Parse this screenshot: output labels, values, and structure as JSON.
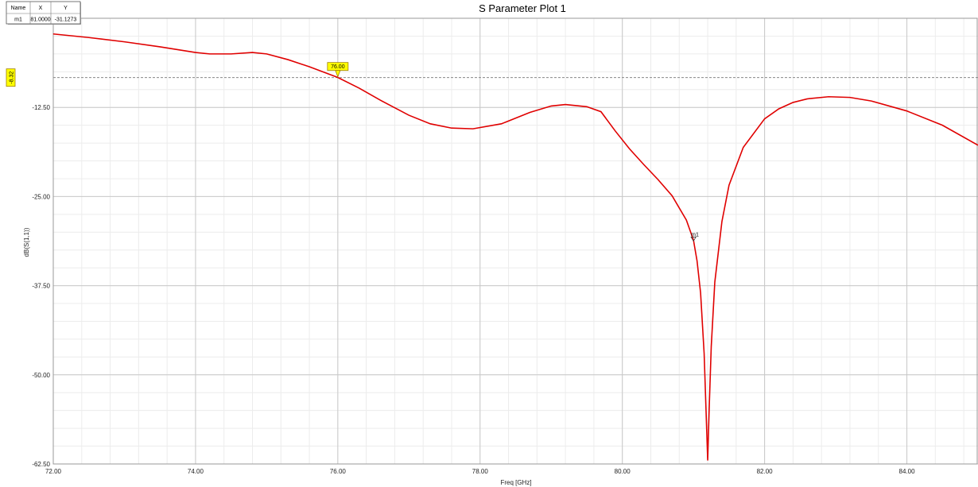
{
  "chart_data": {
    "type": "line",
    "title": "S Parameter Plot 1",
    "xlabel": "Freq [GHz]",
    "ylabel": "dB(S(1,1))",
    "xlim": [
      72.0,
      85.0
    ],
    "ylim": [
      -62.5,
      0
    ],
    "x_ticks": [
      72.0,
      74.0,
      76.0,
      78.0,
      80.0,
      82.0,
      84.0
    ],
    "x_tick_labels": [
      "72.00",
      "74.00",
      "76.00",
      "78.00",
      "80.00",
      "82.00",
      "84.00"
    ],
    "y_ticks": [
      -12.5,
      -25.0,
      -37.5,
      -50.0,
      -62.5
    ],
    "y_tick_labels": [
      "-12.50",
      "-25.00",
      "-37.50",
      "-50.00",
      "-62.50"
    ],
    "grid": true,
    "series_color": "#e00000",
    "series": [
      {
        "x": [
          72.0,
          72.5,
          73.0,
          73.5,
          74.0,
          74.2,
          74.5,
          74.8,
          75.0,
          75.3,
          75.6,
          76.0,
          76.3,
          76.6,
          77.0,
          77.3,
          77.6,
          77.9,
          78.3,
          78.7,
          79.0,
          79.2,
          79.5,
          79.7,
          79.9,
          80.1,
          80.3,
          80.5,
          80.7,
          80.9,
          81.0,
          81.05,
          81.1,
          81.15,
          81.18,
          81.2,
          81.22,
          81.25,
          81.3,
          81.4,
          81.5,
          81.7,
          82.0,
          82.2,
          82.4,
          82.6,
          82.9,
          83.2,
          83.5,
          84.0,
          84.5,
          85.0
        ],
        "y": [
          -2.2,
          -2.7,
          -3.3,
          -4.0,
          -4.8,
          -5.0,
          -5.0,
          -4.8,
          -5.0,
          -5.8,
          -6.8,
          -8.3,
          -9.8,
          -11.5,
          -13.6,
          -14.8,
          -15.4,
          -15.5,
          -14.8,
          -13.2,
          -12.3,
          -12.1,
          -12.4,
          -13.1,
          -15.8,
          -18.3,
          -20.5,
          -22.6,
          -24.9,
          -28.3,
          -31.1,
          -34.0,
          -38.5,
          -47.0,
          -56.0,
          -62.0,
          -55.0,
          -46.0,
          -37.0,
          -28.5,
          -23.4,
          -18.1,
          -14.1,
          -12.7,
          -11.8,
          -11.3,
          -11.0,
          -11.1,
          -11.6,
          -13.0,
          -15.0,
          -17.8
        ]
      }
    ],
    "reference_line": {
      "y": -8.32,
      "label": "-8.32"
    },
    "marker_flag": {
      "x": 76.0,
      "y": -8.32,
      "label": "76.00"
    },
    "markers": [
      {
        "name": "m1",
        "x": 81.0,
        "y": -31.1273
      }
    ],
    "marker_table": {
      "headers": [
        "Name",
        "X",
        "Y"
      ],
      "rows": [
        [
          "m1",
          "81.0000",
          "-31.1273"
        ]
      ]
    }
  }
}
